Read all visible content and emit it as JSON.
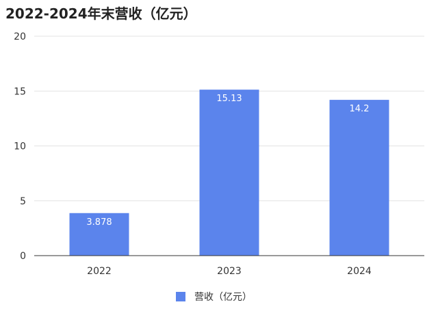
{
  "chart_data": {
    "type": "bar",
    "title": "2022-2024年末营收（亿元）",
    "categories": [
      "2022",
      "2023",
      "2024"
    ],
    "series": [
      {
        "name": "营收（亿元）",
        "values": [
          3.878,
          15.13,
          14.2
        ],
        "color": "#5b84ec"
      }
    ],
    "data_labels": [
      "3.878",
      "15.13",
      "14.2"
    ],
    "ylim": [
      0,
      20
    ],
    "yticks": [
      0,
      5,
      10,
      15,
      20
    ],
    "grid": true,
    "legend_position": "bottom-center",
    "gridline_color": "#e3e3e3",
    "axis_color": "#333333"
  }
}
